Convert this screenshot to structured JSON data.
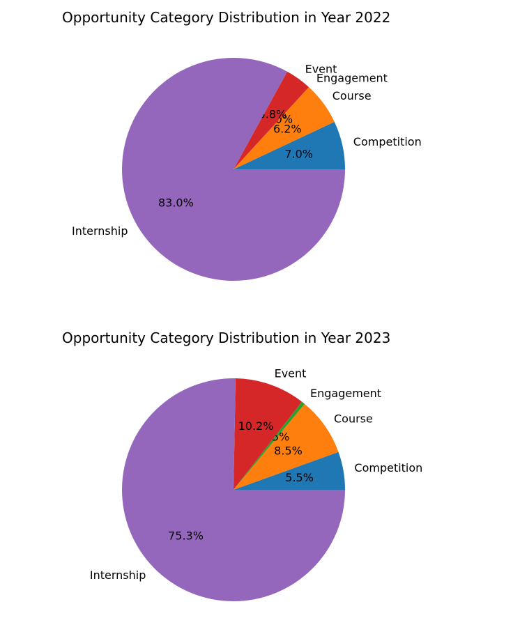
{
  "chart_data": [
    {
      "type": "pie",
      "title": "Opportunity Category Distribution in Year 2022",
      "categories": [
        "Competition",
        "Course",
        "Engagement",
        "Event",
        "Internship"
      ],
      "values": [
        7.0,
        6.2,
        0.0,
        3.8,
        83.0
      ],
      "value_labels": [
        "7.0%",
        "6.2%",
        "0.0%",
        "3.8%",
        "83.0%"
      ],
      "colors": [
        "#1f77b4",
        "#ff7f0e",
        "#2ca02c",
        "#d62728",
        "#9467bd"
      ],
      "start_angle": 0,
      "direction": "counterclockwise"
    },
    {
      "type": "pie",
      "title": "Opportunity Category Distribution in Year 2023",
      "categories": [
        "Competition",
        "Course",
        "Engagement",
        "Event",
        "Internship"
      ],
      "values": [
        5.5,
        8.5,
        0.5,
        10.2,
        75.3
      ],
      "value_labels": [
        "5.5%",
        "8.5%",
        "0.5%",
        "10.2%",
        "75.3%"
      ],
      "colors": [
        "#1f77b4",
        "#ff7f0e",
        "#2ca02c",
        "#d62728",
        "#9467bd"
      ],
      "start_angle": 0,
      "direction": "counterclockwise"
    }
  ]
}
